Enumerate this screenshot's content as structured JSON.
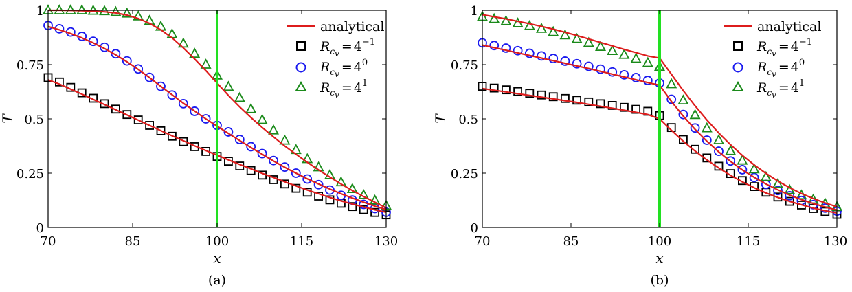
{
  "chart_data": [
    {
      "type": "line",
      "caption": "(a)",
      "xlabel": "x",
      "ylabel": "T",
      "xlim": [
        70,
        130
      ],
      "ylim": [
        0,
        1
      ],
      "xticks": [
        70,
        85,
        100,
        115,
        130
      ],
      "xtick_labels": [
        "70",
        "85",
        "100",
        "115",
        "130"
      ],
      "yticks": [
        0,
        0.25,
        0.5,
        0.75,
        1
      ],
      "ytick_labels": [
        "0",
        "0.25",
        "0.5",
        "0.75",
        "1"
      ],
      "interface_x": 100,
      "legend_position": "top-right",
      "legend": [
        {
          "label": "analytical",
          "kind": "line",
          "color": "#dd1c1c"
        },
        {
          "label": "R",
          "sub": "c",
          "subsub": "v",
          "eq": "=",
          "base": "4",
          "exp": "−1",
          "kind": "square",
          "color": "#000000"
        },
        {
          "label": "R",
          "sub": "c",
          "subsub": "v",
          "eq": "=",
          "base": "4",
          "exp": "0",
          "kind": "circle",
          "color": "#1a1aef"
        },
        {
          "label": "R",
          "sub": "c",
          "subsub": "v",
          "eq": "=",
          "base": "4",
          "exp": "1",
          "kind": "triangle",
          "color": "#1a8a1a"
        }
      ],
      "series": [
        {
          "name": "Rcv = 4^-1",
          "marker": "square",
          "color": "#000000",
          "x": [
            70,
            72,
            74,
            76,
            78,
            80,
            82,
            84,
            86,
            88,
            90,
            92,
            94,
            96,
            98,
            100,
            102,
            104,
            106,
            108,
            110,
            112,
            114,
            116,
            118,
            120,
            122,
            124,
            126,
            128,
            130
          ],
          "y": [
            0.69,
            0.67,
            0.645,
            0.62,
            0.595,
            0.57,
            0.545,
            0.52,
            0.495,
            0.47,
            0.445,
            0.42,
            0.395,
            0.372,
            0.35,
            0.327,
            0.305,
            0.283,
            0.262,
            0.241,
            0.22,
            0.2,
            0.18,
            0.162,
            0.144,
            0.127,
            0.111,
            0.096,
            0.082,
            0.069,
            0.058
          ]
        },
        {
          "name": "Rcv = 4^0",
          "marker": "circle",
          "color": "#1a1aef",
          "x": [
            70,
            72,
            74,
            76,
            78,
            80,
            82,
            84,
            86,
            88,
            90,
            92,
            94,
            96,
            98,
            100,
            102,
            104,
            106,
            108,
            110,
            112,
            114,
            116,
            118,
            120,
            122,
            124,
            126,
            128,
            130
          ],
          "y": [
            0.93,
            0.915,
            0.9,
            0.88,
            0.857,
            0.83,
            0.8,
            0.767,
            0.73,
            0.691,
            0.65,
            0.61,
            0.57,
            0.535,
            0.5,
            0.47,
            0.44,
            0.405,
            0.372,
            0.34,
            0.308,
            0.278,
            0.25,
            0.223,
            0.197,
            0.172,
            0.148,
            0.126,
            0.106,
            0.087,
            0.07
          ]
        },
        {
          "name": "Rcv = 4^1",
          "marker": "triangle",
          "color": "#1a8a1a",
          "x": [
            70,
            72,
            74,
            76,
            78,
            80,
            82,
            84,
            86,
            88,
            90,
            92,
            94,
            96,
            98,
            100,
            102,
            104,
            106,
            108,
            110,
            112,
            114,
            116,
            118,
            120,
            122,
            124,
            126,
            128,
            130
          ],
          "y": [
            1.0,
            1.0,
            1.0,
            1.0,
            0.998,
            0.996,
            0.992,
            0.985,
            0.972,
            0.952,
            0.925,
            0.89,
            0.847,
            0.8,
            0.75,
            0.7,
            0.648,
            0.597,
            0.545,
            0.495,
            0.447,
            0.4,
            0.357,
            0.315,
            0.277,
            0.241,
            0.208,
            0.177,
            0.149,
            0.124,
            0.1
          ]
        },
        {
          "name": "analytical",
          "marker": "none",
          "color": "#dd1c1c",
          "curves": [
            {
              "x": [
                70,
                72,
                74,
                76,
                78,
                80,
                82,
                84,
                86,
                88,
                90,
                92,
                94,
                96,
                98,
                100,
                102,
                104,
                106,
                108,
                110,
                112,
                114,
                116,
                118,
                120,
                122,
                124,
                126,
                128,
                130
              ],
              "y": [
                0.68,
                0.66,
                0.637,
                0.614,
                0.59,
                0.566,
                0.542,
                0.518,
                0.494,
                0.47,
                0.446,
                0.422,
                0.399,
                0.376,
                0.354,
                0.333,
                0.311,
                0.29,
                0.27,
                0.249,
                0.23,
                0.21,
                0.191,
                0.172,
                0.155,
                0.138,
                0.122,
                0.108,
                0.094,
                0.081,
                0.07
              ]
            },
            {
              "x": [
                70,
                72,
                74,
                76,
                78,
                80,
                82,
                84,
                86,
                88,
                90,
                92,
                94,
                96,
                98,
                100,
                102,
                104,
                106,
                108,
                110,
                112,
                114,
                116,
                118,
                120,
                122,
                124,
                126,
                128,
                130
              ],
              "y": [
                0.925,
                0.91,
                0.893,
                0.873,
                0.85,
                0.824,
                0.795,
                0.763,
                0.728,
                0.69,
                0.65,
                0.611,
                0.572,
                0.536,
                0.5,
                0.466,
                0.433,
                0.4,
                0.368,
                0.337,
                0.306,
                0.277,
                0.25,
                0.224,
                0.2,
                0.177,
                0.155,
                0.135,
                0.116,
                0.098,
                0.082
              ]
            },
            {
              "x": [
                70,
                72,
                74,
                76,
                78,
                80,
                82,
                84,
                86,
                88,
                90,
                92,
                94,
                96,
                98,
                100,
                102,
                104,
                106,
                108,
                110,
                112,
                114,
                116,
                118,
                120,
                122,
                124,
                126,
                128,
                130
              ],
              "y": [
                1.0,
                1.0,
                0.999,
                0.998,
                0.996,
                0.993,
                0.988,
                0.978,
                0.962,
                0.94,
                0.91,
                0.873,
                0.827,
                0.776,
                0.722,
                0.665,
                0.608,
                0.555,
                0.506,
                0.46,
                0.417,
                0.375,
                0.337,
                0.3,
                0.265,
                0.232,
                0.2,
                0.17,
                0.142,
                0.116,
                0.09
              ]
            }
          ]
        }
      ]
    },
    {
      "type": "line",
      "caption": "(b)",
      "xlabel": "x",
      "ylabel": "T",
      "xlim": [
        70,
        130
      ],
      "ylim": [
        0,
        1
      ],
      "xticks": [
        70,
        85,
        100,
        115,
        130
      ],
      "xtick_labels": [
        "70",
        "85",
        "100",
        "115",
        "130"
      ],
      "yticks": [
        0,
        0.25,
        0.5,
        0.75,
        1
      ],
      "ytick_labels": [
        "0",
        "0.25",
        "0.5",
        "0.75",
        "1"
      ],
      "interface_x": 100,
      "legend_position": "top-right",
      "legend": [
        {
          "label": "analytical",
          "kind": "line",
          "color": "#dd1c1c"
        },
        {
          "label": "R",
          "sub": "c",
          "subsub": "v",
          "eq": "=",
          "base": "4",
          "exp": "−1",
          "kind": "square",
          "color": "#000000"
        },
        {
          "label": "R",
          "sub": "c",
          "subsub": "v",
          "eq": "=",
          "base": "4",
          "exp": "0",
          "kind": "circle",
          "color": "#1a1aef"
        },
        {
          "label": "R",
          "sub": "c",
          "subsub": "v",
          "eq": "=",
          "base": "4",
          "exp": "1",
          "kind": "triangle",
          "color": "#1a8a1a"
        }
      ],
      "series": [
        {
          "name": "Rcv = 4^-1",
          "marker": "square",
          "color": "#000000",
          "x": [
            70,
            72,
            74,
            76,
            78,
            80,
            82,
            84,
            86,
            88,
            90,
            92,
            94,
            96,
            98,
            100,
            102,
            104,
            106,
            108,
            110,
            112,
            114,
            116,
            118,
            120,
            122,
            124,
            126,
            128,
            130
          ],
          "y": [
            0.65,
            0.642,
            0.634,
            0.626,
            0.618,
            0.61,
            0.602,
            0.594,
            0.586,
            0.578,
            0.57,
            0.562,
            0.553,
            0.544,
            0.535,
            0.515,
            0.46,
            0.405,
            0.36,
            0.32,
            0.282,
            0.248,
            0.216,
            0.188,
            0.162,
            0.14,
            0.12,
            0.103,
            0.087,
            0.073,
            0.06
          ]
        },
        {
          "name": "Rcv = 4^0",
          "marker": "circle",
          "color": "#1a1aef",
          "x": [
            70,
            72,
            74,
            76,
            78,
            80,
            82,
            84,
            86,
            88,
            90,
            92,
            94,
            96,
            98,
            100,
            102,
            104,
            106,
            108,
            110,
            112,
            114,
            116,
            118,
            120,
            122,
            124,
            126,
            128,
            130
          ],
          "y": [
            0.85,
            0.838,
            0.826,
            0.814,
            0.802,
            0.79,
            0.778,
            0.766,
            0.754,
            0.742,
            0.729,
            0.716,
            0.703,
            0.69,
            0.677,
            0.665,
            0.59,
            0.52,
            0.458,
            0.402,
            0.351,
            0.306,
            0.266,
            0.23,
            0.198,
            0.17,
            0.146,
            0.124,
            0.105,
            0.089,
            0.075
          ]
        },
        {
          "name": "Rcv = 4^1",
          "marker": "triangle",
          "color": "#1a8a1a",
          "x": [
            70,
            72,
            74,
            76,
            78,
            80,
            82,
            84,
            86,
            88,
            90,
            92,
            94,
            96,
            98,
            100,
            102,
            104,
            106,
            108,
            110,
            112,
            114,
            116,
            118,
            120,
            122,
            124,
            126,
            128,
            130
          ],
          "y": [
            0.97,
            0.96,
            0.95,
            0.94,
            0.928,
            0.915,
            0.9,
            0.885,
            0.868,
            0.85,
            0.832,
            0.813,
            0.795,
            0.777,
            0.758,
            0.74,
            0.66,
            0.585,
            0.518,
            0.457,
            0.402,
            0.352,
            0.308,
            0.268,
            0.232,
            0.2,
            0.172,
            0.148,
            0.128,
            0.11,
            0.095
          ]
        },
        {
          "name": "analytical",
          "marker": "none",
          "color": "#dd1c1c",
          "curves": [
            {
              "x": [
                70,
                72,
                74,
                76,
                78,
                80,
                82,
                84,
                86,
                88,
                90,
                92,
                94,
                96,
                98,
                100,
                102,
                104,
                106,
                108,
                110,
                112,
                114,
                116,
                118,
                120,
                122,
                124,
                126,
                128,
                130
              ],
              "y": [
                0.64,
                0.632,
                0.624,
                0.616,
                0.608,
                0.6,
                0.592,
                0.584,
                0.576,
                0.567,
                0.558,
                0.549,
                0.54,
                0.53,
                0.52,
                0.5,
                0.447,
                0.397,
                0.352,
                0.311,
                0.274,
                0.24,
                0.21,
                0.183,
                0.159,
                0.138,
                0.12,
                0.104,
                0.089,
                0.077,
                0.066
              ]
            },
            {
              "x": [
                70,
                72,
                74,
                76,
                78,
                80,
                82,
                84,
                86,
                88,
                90,
                92,
                94,
                96,
                98,
                100,
                102,
                104,
                106,
                108,
                110,
                112,
                114,
                116,
                118,
                120,
                122,
                124,
                126,
                128,
                130
              ],
              "y": [
                0.84,
                0.828,
                0.816,
                0.804,
                0.792,
                0.78,
                0.768,
                0.756,
                0.744,
                0.732,
                0.719,
                0.706,
                0.693,
                0.68,
                0.667,
                0.655,
                0.58,
                0.513,
                0.452,
                0.397,
                0.348,
                0.304,
                0.265,
                0.231,
                0.2,
                0.173,
                0.149,
                0.128,
                0.11,
                0.094,
                0.08
              ]
            },
            {
              "x": [
                70,
                72,
                74,
                76,
                78,
                80,
                82,
                84,
                86,
                88,
                90,
                92,
                94,
                96,
                98,
                100,
                102,
                104,
                106,
                108,
                110,
                112,
                114,
                116,
                118,
                120,
                122,
                124,
                126,
                128,
                130
              ],
              "y": [
                0.98,
                0.97,
                0.96,
                0.949,
                0.938,
                0.926,
                0.913,
                0.899,
                0.884,
                0.868,
                0.852,
                0.836,
                0.82,
                0.805,
                0.79,
                0.78,
                0.705,
                0.63,
                0.56,
                0.495,
                0.435,
                0.381,
                0.332,
                0.288,
                0.249,
                0.214,
                0.183,
                0.156,
                0.133,
                0.113,
                0.095
              ]
            }
          ]
        }
      ]
    }
  ],
  "colors": {
    "interface_line": "#22e022"
  }
}
